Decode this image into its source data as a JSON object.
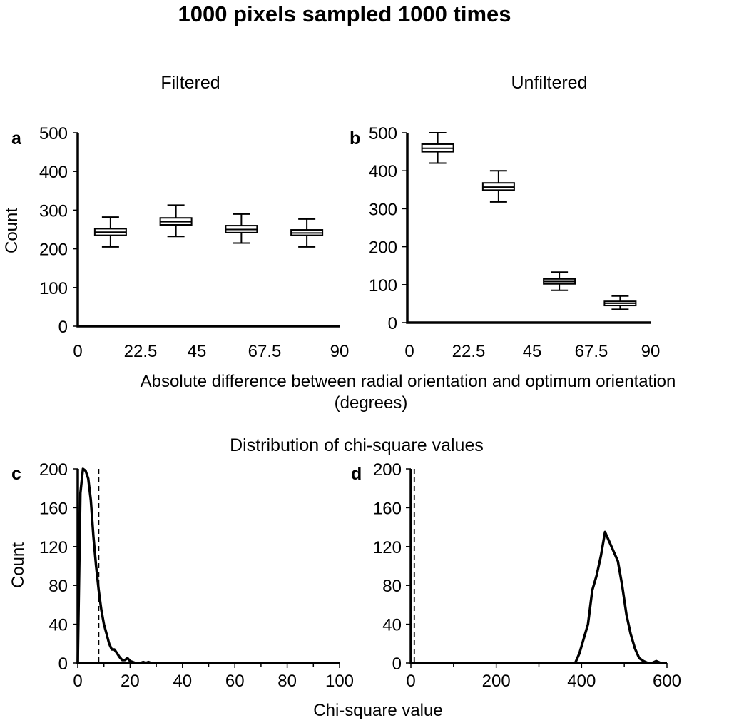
{
  "figure": {
    "title": "1000 pixels sampled 1000 times",
    "col_left": "Filtered",
    "col_right": "Unfiltered",
    "xlabel_top_line1": "Absolute difference between radial orientation and optimum orientation",
    "xlabel_top_line2": "(degrees)",
    "subtitle_bottom": "Distribution of chi-square values",
    "xlabel_bottom": "Chi-square value",
    "ylabel": "Count"
  },
  "chart_data": [
    {
      "panel": "a",
      "type": "box",
      "ylabel": "Count",
      "xlim": [
        0,
        90
      ],
      "ylim": [
        0,
        500
      ],
      "xticks": [
        "0",
        "22.5",
        "45",
        "67.5",
        "90"
      ],
      "yticks": [
        "0",
        "100",
        "200",
        "300",
        "400",
        "500"
      ],
      "boxes": [
        {
          "x": 11.25,
          "min": 205,
          "q1": 235,
          "median": 243,
          "q3": 252,
          "max": 282
        },
        {
          "x": 33.75,
          "min": 232,
          "q1": 262,
          "median": 270,
          "q3": 280,
          "max": 313
        },
        {
          "x": 56.25,
          "min": 215,
          "q1": 242,
          "median": 250,
          "q3": 260,
          "max": 290
        },
        {
          "x": 78.75,
          "min": 205,
          "q1": 235,
          "median": 241,
          "q3": 249,
          "max": 277
        }
      ]
    },
    {
      "panel": "b",
      "type": "box",
      "xlim": [
        0,
        90
      ],
      "ylim": [
        0,
        500
      ],
      "xticks": [
        "0",
        "22.5",
        "45",
        "67.5",
        "90"
      ],
      "yticks": [
        "0",
        "100",
        "200",
        "300",
        "400",
        "500"
      ],
      "boxes": [
        {
          "x": 11.25,
          "min": 420,
          "q1": 450,
          "median": 459,
          "q3": 470,
          "max": 500
        },
        {
          "x": 33.75,
          "min": 318,
          "q1": 349,
          "median": 357,
          "q3": 368,
          "max": 400
        },
        {
          "x": 56.25,
          "min": 85,
          "q1": 102,
          "median": 108,
          "q3": 115,
          "max": 133
        },
        {
          "x": 78.75,
          "min": 35,
          "q1": 45,
          "median": 51,
          "q3": 56,
          "max": 70
        }
      ]
    },
    {
      "panel": "c",
      "type": "line",
      "ylabel": "Count",
      "xlim": [
        0,
        100
      ],
      "ylim": [
        0,
        200
      ],
      "xticks": [
        "0",
        "20",
        "40",
        "60",
        "80",
        "100"
      ],
      "yticks": [
        "0",
        "40",
        "80",
        "120",
        "160",
        "200"
      ],
      "reference_line_x": 8,
      "x": [
        0,
        1,
        2,
        3,
        4,
        5,
        6,
        7,
        8,
        9,
        10,
        11,
        12,
        13,
        14,
        15,
        16,
        17,
        18,
        19,
        20,
        21,
        22,
        23,
        24,
        25,
        26,
        27,
        28,
        30,
        35,
        40,
        60,
        80,
        100
      ],
      "y": [
        0,
        175,
        200,
        198,
        190,
        168,
        130,
        100,
        75,
        55,
        40,
        30,
        20,
        14,
        14,
        10,
        6,
        3,
        3,
        5,
        2,
        1,
        0,
        0,
        0,
        1,
        0,
        1,
        0,
        0,
        0,
        0,
        0,
        0,
        0
      ]
    },
    {
      "panel": "d",
      "type": "line",
      "xlim": [
        0,
        600
      ],
      "ylim": [
        0,
        200
      ],
      "xticks": [
        "0",
        "200",
        "400",
        "600"
      ],
      "yticks": [
        "0",
        "40",
        "80",
        "120",
        "160",
        "200"
      ],
      "reference_line_x": 8,
      "x": [
        0,
        370,
        385,
        395,
        405,
        415,
        425,
        435,
        445,
        455,
        465,
        475,
        485,
        495,
        505,
        515,
        525,
        535,
        545,
        555,
        565,
        575,
        585
      ],
      "y": [
        0,
        0,
        0,
        10,
        25,
        40,
        75,
        90,
        110,
        135,
        125,
        115,
        105,
        80,
        50,
        30,
        15,
        5,
        2,
        0,
        0,
        2,
        0
      ]
    }
  ]
}
